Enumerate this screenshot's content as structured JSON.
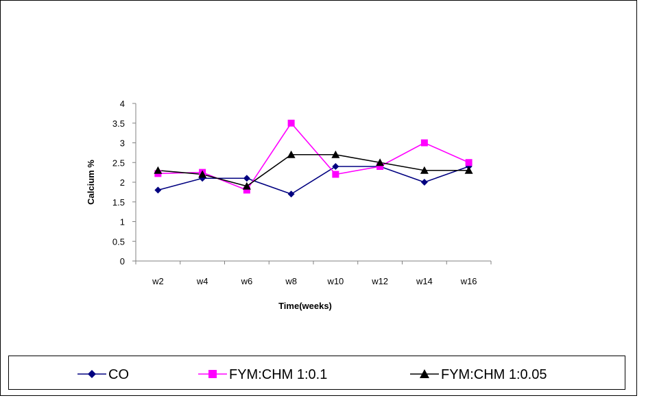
{
  "chart_data": {
    "type": "line",
    "xlabel": "Time(weeks)",
    "ylabel": "Calcium %",
    "categories": [
      "w2",
      "w4",
      "w6",
      "w8",
      "w10",
      "w12",
      "w14",
      "w16"
    ],
    "ylim": [
      0,
      4
    ],
    "yticks": [
      "0",
      "0.5",
      "1",
      "1.5",
      "2",
      "2.5",
      "3",
      "3.5",
      "4"
    ],
    "grid": false,
    "legend_position": "bottom",
    "series": [
      {
        "name": "CO",
        "color": "#000080",
        "marker": "diamond",
        "values": [
          1.8,
          2.1,
          2.1,
          1.7,
          2.4,
          2.4,
          2.0,
          2.4
        ]
      },
      {
        "name": "FYM:CHM 1:0.1",
        "color": "#FF00FF",
        "marker": "square",
        "values": [
          2.22,
          2.25,
          1.8,
          3.5,
          2.2,
          2.4,
          3.0,
          2.5
        ]
      },
      {
        "name": "FYM:CHM 1:0.05",
        "color": "#000000",
        "marker": "triangle",
        "values": [
          2.3,
          2.2,
          1.9,
          2.7,
          2.7,
          2.5,
          2.3,
          2.3
        ]
      }
    ]
  }
}
